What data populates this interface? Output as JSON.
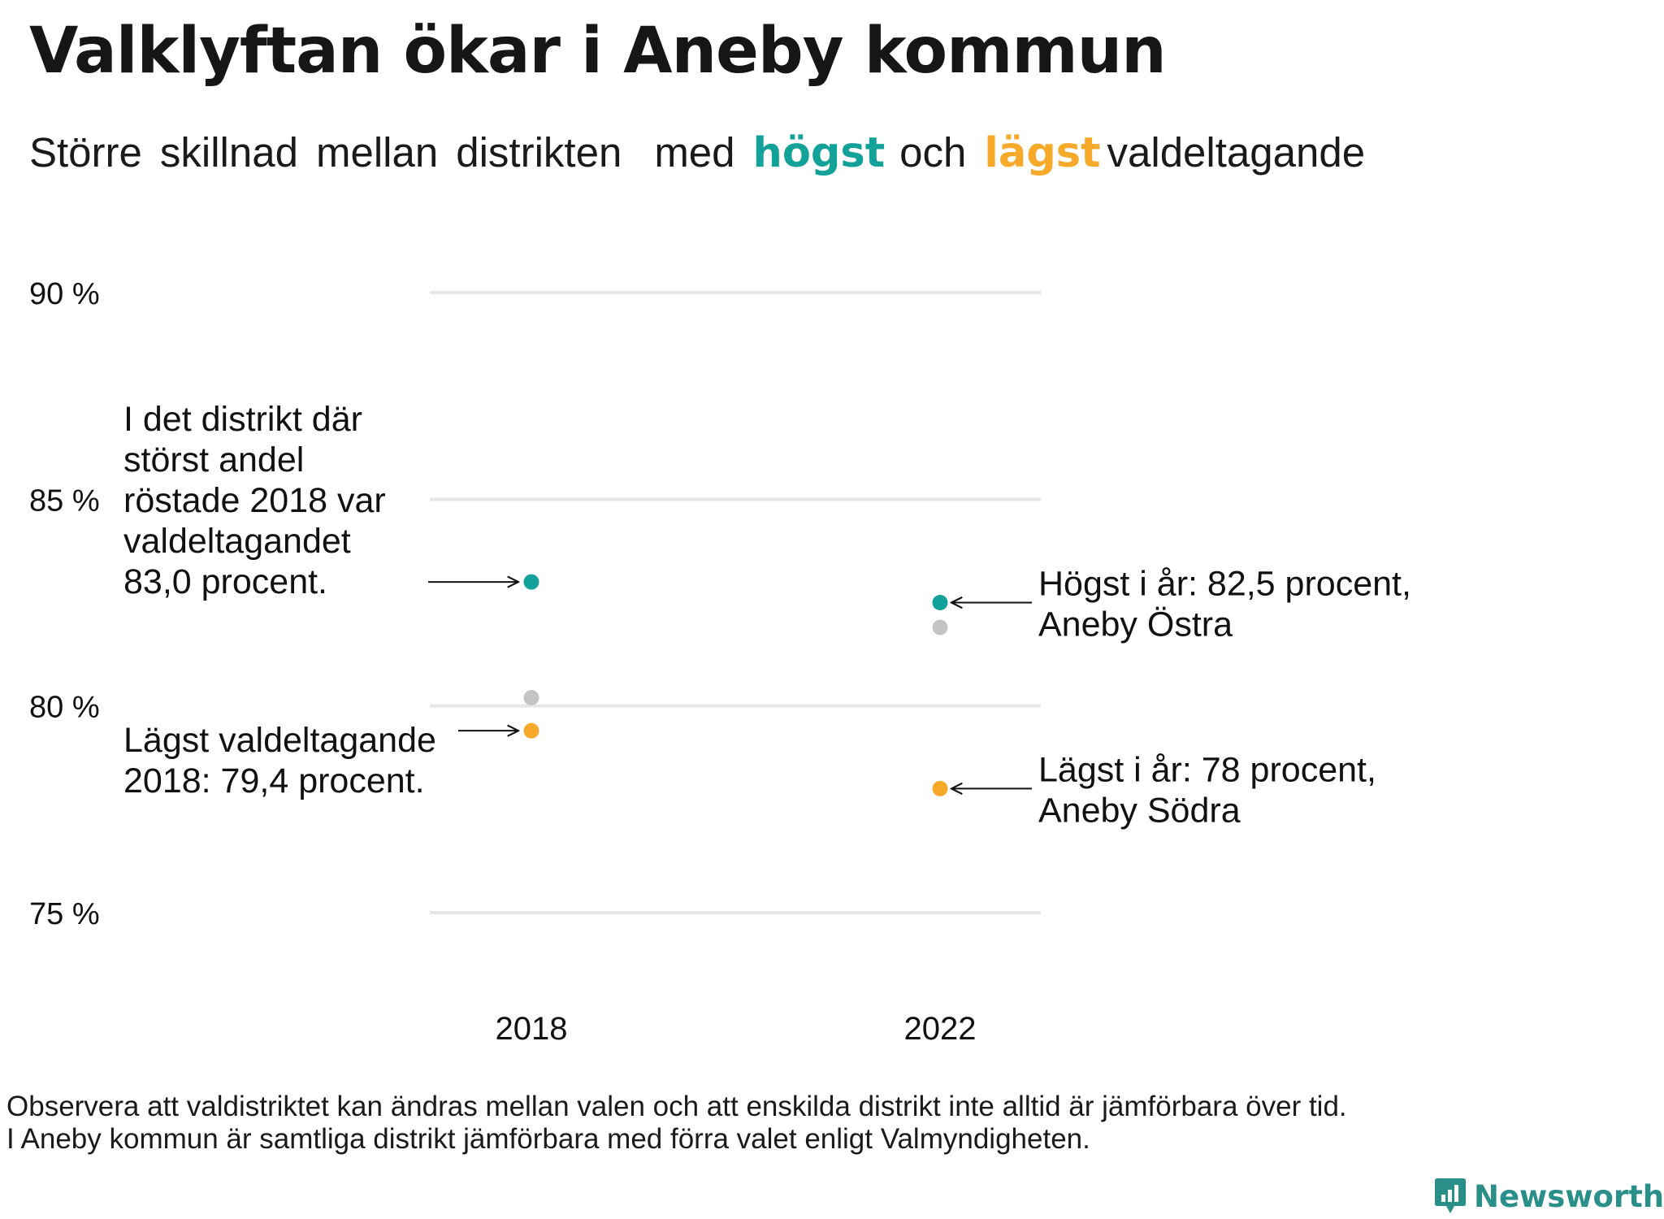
{
  "title": "Valklyftan ökar i Aneby kommun",
  "subtitle": {
    "words_before": [
      "Större",
      "skillnad",
      "mellan",
      "distrikten",
      "med"
    ],
    "high_word": "högst",
    "middle_word": "och",
    "low_word": "lägst",
    "word_after": "valdeltagande"
  },
  "colors": {
    "high": "#12a299",
    "low": "#f7a929",
    "other": "#c4c4c4",
    "grid": "#e6e6e6",
    "text": "#111111",
    "brand": "#2a8f88"
  },
  "chart_data": {
    "type": "scatter",
    "title": "Valklyftan ökar i Aneby kommun",
    "categories": [
      "2018",
      "2022"
    ],
    "ylim": [
      75,
      90
    ],
    "y_ticks": [
      90,
      85,
      80,
      75
    ],
    "y_tick_labels": [
      "90 %",
      "85 %",
      "80 %",
      "75 %"
    ],
    "grid": true,
    "series": [
      {
        "role": "high",
        "values": [
          83.0,
          82.5
        ]
      },
      {
        "role": "other",
        "values": [
          80.2,
          81.9
        ]
      },
      {
        "role": "low",
        "values": [
          79.4,
          78.0
        ]
      }
    ],
    "annotations": [
      {
        "target": "high-2018",
        "side": "left",
        "lines": [
          "I det distrikt där",
          "störst andel",
          "röstade 2018 var",
          "valdeltagandet",
          "83,0 procent."
        ]
      },
      {
        "target": "low-2018",
        "side": "left",
        "lines": [
          "Lägst valdeltagande",
          "2018: 79,4 procent."
        ]
      },
      {
        "target": "high-2022",
        "side": "right",
        "lines": [
          "Högst i år: 82,5 procent,",
          "Aneby Östra"
        ]
      },
      {
        "target": "low-2022",
        "side": "right",
        "lines": [
          "Lägst i år: 78 procent,",
          "Aneby Södra"
        ]
      }
    ]
  },
  "footnote": {
    "line1": "Observera att valdistriktet kan ändras mellan valen och att enskilda distrikt inte alltid är jämförbara över tid.",
    "line2": "I Aneby kommun är samtliga distrikt jämförbara med förra valet enligt Valmyndigheten."
  },
  "brand": {
    "name": "Newsworthy",
    "icon": "bar-chart-speech-bubble-icon"
  }
}
